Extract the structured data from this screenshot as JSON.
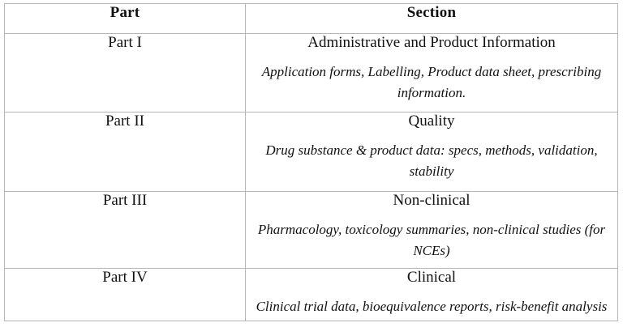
{
  "table": {
    "border_color": "#b5b5b5",
    "text_color": "#111111",
    "headers": {
      "part": "Part",
      "section": "Section"
    },
    "rows": [
      {
        "part": "Part I",
        "title": "Administrative and Product Information",
        "description": "Application forms, Labelling, Product data sheet, prescribing information."
      },
      {
        "part": "Part II",
        "title": "Quality",
        "description": "Drug substance & product data: specs, methods, validation, stability"
      },
      {
        "part": "Part III",
        "title": "Non-clinical",
        "description": "Pharmacology, toxicology summaries, non-clinical studies (for NCEs)"
      },
      {
        "part": "Part IV",
        "title": "Clinical",
        "description": "Clinical trial data, bioequivalence reports, risk-benefit analysis"
      }
    ]
  }
}
